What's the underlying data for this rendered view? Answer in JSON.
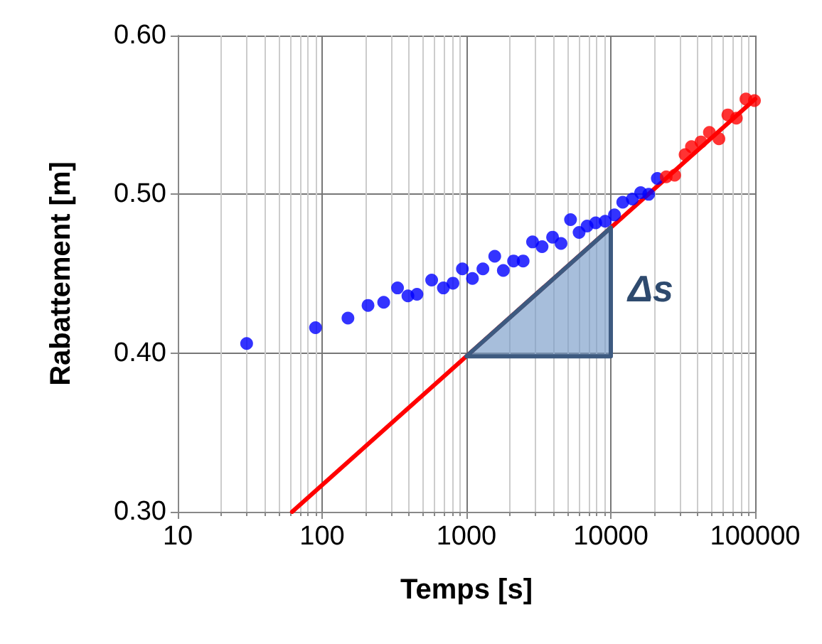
{
  "chart_data": {
    "type": "scatter",
    "xlabel": "Temps [s]",
    "ylabel": "Rabattement [m]",
    "log": "x",
    "xlim": [
      10,
      100000
    ],
    "xticks": [
      10,
      100,
      1000,
      10000,
      100000
    ],
    "ylim": [
      0.3,
      0.6
    ],
    "yticks": [
      {
        "value": 0.3,
        "label": "0.30"
      },
      {
        "value": 0.4,
        "label": "0.40"
      },
      {
        "value": 0.5,
        "label": "0.50"
      },
      {
        "value": 0.6,
        "label": "0.60"
      }
    ],
    "grid": true,
    "marker": "circle",
    "series": [
      {
        "color": "#0000ff",
        "x": [
          30,
          90,
          151,
          208,
          267,
          333,
          393,
          454,
          574,
          692,
          806,
          937,
          1100,
          1300,
          1570,
          1800,
          2120,
          2470,
          2870,
          3340,
          3950,
          4520,
          5260,
          6030,
          6850,
          7860,
          9140,
          10600,
          12100,
          14100,
          16100,
          18300,
          21000
        ],
        "values": [
          0.406,
          0.416,
          0.422,
          0.43,
          0.432,
          0.441,
          0.436,
          0.437,
          0.446,
          0.441,
          0.444,
          0.453,
          0.447,
          0.453,
          0.461,
          0.452,
          0.458,
          0.458,
          0.47,
          0.467,
          0.473,
          0.469,
          0.484,
          0.476,
          0.48,
          0.482,
          0.483,
          0.487,
          0.495,
          0.497,
          0.501,
          0.5,
          0.51
        ]
      },
      {
        "color": "#ff0000",
        "x": [
          24200,
          27700,
          32700,
          36200,
          42100,
          48200,
          56100,
          64700,
          74100,
          86300,
          98900
        ],
        "values": [
          0.511,
          0.512,
          0.525,
          0.53,
          0.533,
          0.539,
          0.535,
          0.55,
          0.548,
          0.56,
          0.559
        ]
      },
      {
        "type": "line",
        "color": "#ff0000",
        "marker": "none",
        "line_style": "solid",
        "x": [
          62,
          1000,
          10000,
          100000
        ],
        "values": [
          0.3,
          0.398,
          0.479,
          0.56
        ]
      }
    ],
    "annotations": [
      "Δs"
    ]
  }
}
